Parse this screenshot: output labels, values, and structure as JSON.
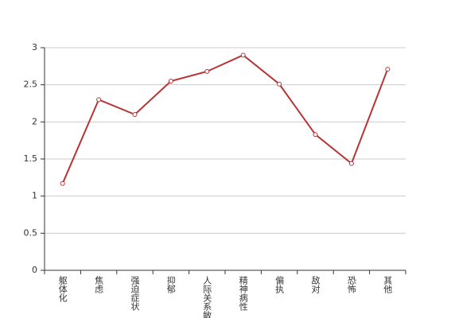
{
  "chart_data": {
    "type": "line",
    "categories": [
      "躯体化",
      "焦虑",
      "强迫症状",
      "抑郁",
      "人际关系敏感",
      "精神病性",
      "偏执",
      "敌对",
      "恐怖",
      "其他"
    ],
    "series": [
      {
        "color": "#b73434",
        "values": [
          1.17,
          2.3,
          2.1,
          2.55,
          2.68,
          2.9,
          2.51,
          1.83,
          1.44,
          2.71
        ]
      }
    ],
    "ylim": [
      0,
      3
    ],
    "yticks": [
      0,
      0.5,
      1,
      1.5,
      2,
      2.5,
      3
    ],
    "grid": true
  }
}
